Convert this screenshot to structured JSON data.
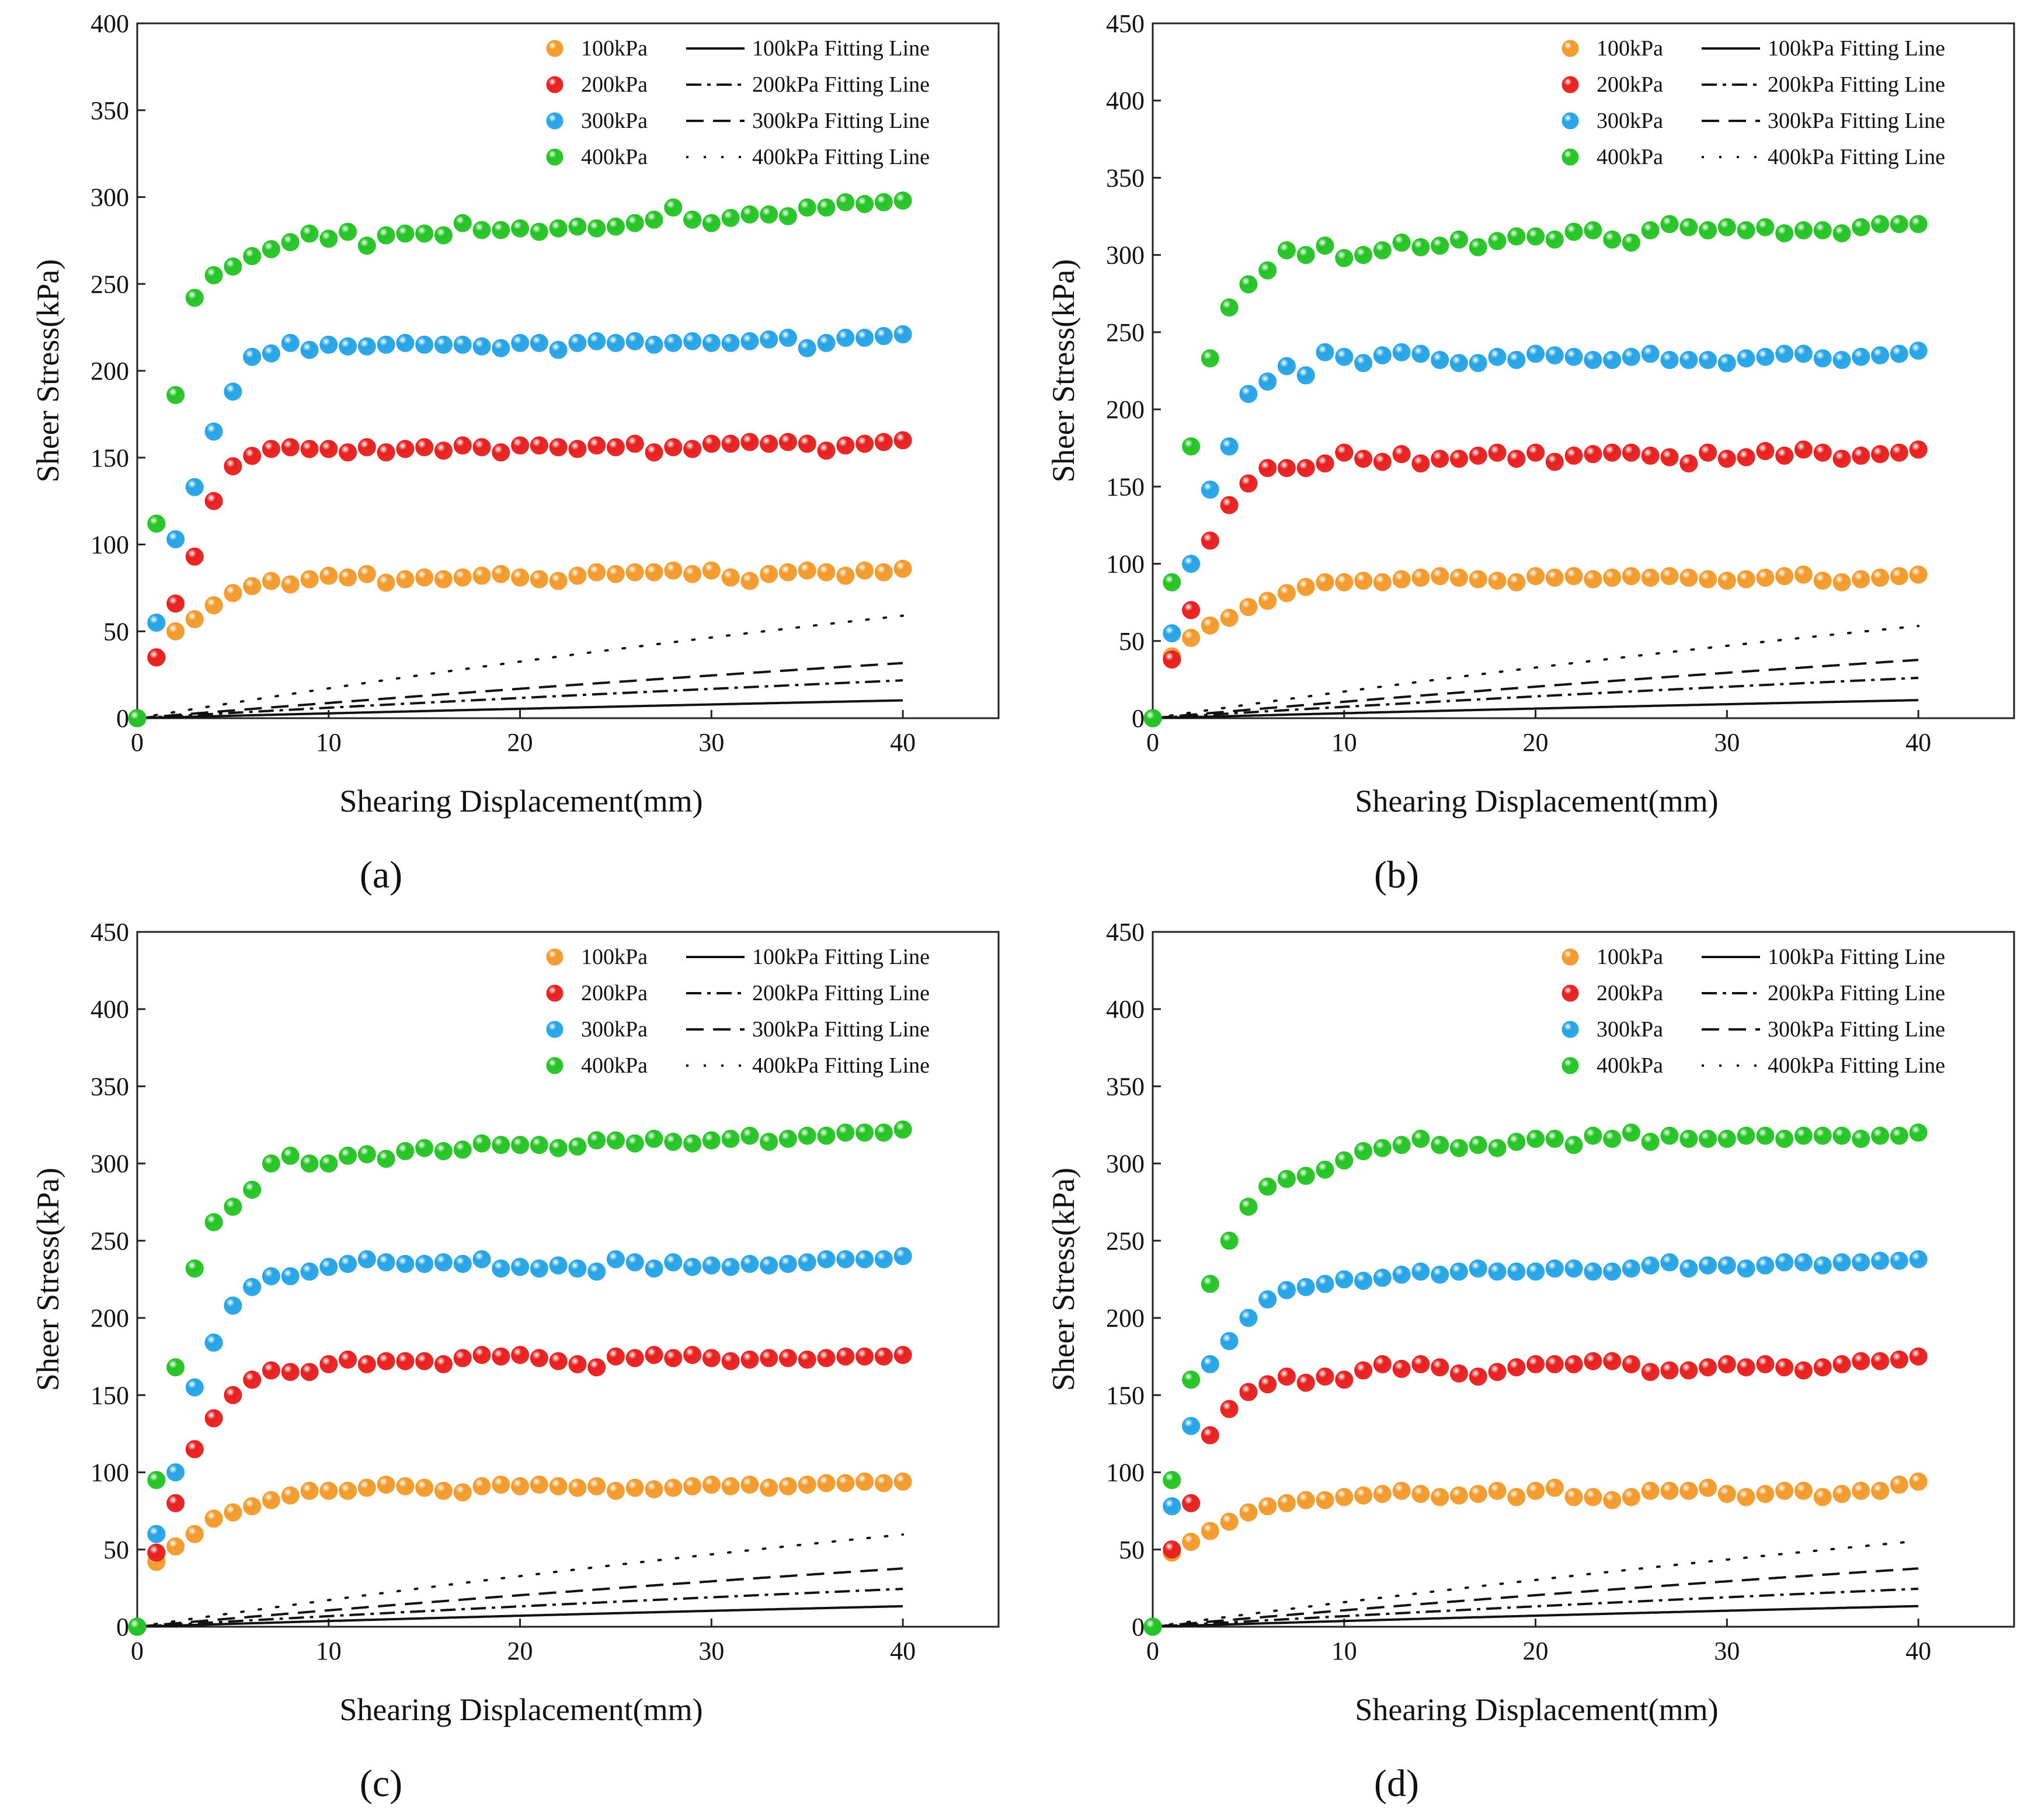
{
  "legend": {
    "markers": [
      "100kPa",
      "200kPa",
      "300kPa",
      "400kPa"
    ],
    "lines": [
      "100kPa Fitting Line",
      "200kPa Fitting Line",
      "300kPa Fitting Line",
      "400kPa Fitting Line"
    ]
  },
  "series_colors": [
    "#f39a2c",
    "#e8201f",
    "#26a4e6",
    "#25c425"
  ],
  "chart_data": [
    {
      "panel": "a",
      "caption": "(a)",
      "type": "scatter",
      "xlabel": "Shearing Displacement(mm)",
      "ylabel": "Sheer Stress(kPa)",
      "xlim": [
        0,
        45
      ],
      "ylim": [
        0,
        400
      ],
      "xticks": [
        0,
        10,
        20,
        30,
        40
      ],
      "yticks": [
        0,
        50,
        100,
        150,
        200,
        250,
        300,
        350,
        400
      ],
      "x": [
        0,
        1,
        2,
        3,
        4,
        5,
        6,
        7,
        8,
        9,
        10,
        11,
        12,
        13,
        14,
        15,
        16,
        17,
        18,
        19,
        20,
        21,
        22,
        23,
        24,
        25,
        26,
        27,
        28,
        29,
        30,
        31,
        32,
        33,
        34,
        35,
        36,
        37,
        38,
        39,
        40
      ],
      "series": [
        {
          "name": "100kPa",
          "values": [
            0,
            35,
            50,
            57,
            65,
            72,
            76,
            79,
            77,
            80,
            82,
            81,
            83,
            78,
            80,
            81,
            80,
            81,
            82,
            83,
            81,
            80,
            79,
            82,
            84,
            83,
            84,
            84,
            85,
            83,
            85,
            81,
            79,
            83,
            84,
            85,
            84,
            82,
            85,
            84,
            86
          ],
          "fit": {
            "a": 3.5,
            "b": 0.0099
          }
        },
        {
          "name": "200kPa",
          "values": [
            0,
            35,
            66,
            93,
            125,
            145,
            151,
            155,
            156,
            155,
            155,
            153,
            156,
            153,
            155,
            156,
            154,
            157,
            156,
            153,
            157,
            157,
            156,
            155,
            157,
            156,
            158,
            153,
            156,
            155,
            158,
            158,
            159,
            158,
            159,
            158,
            154,
            157,
            158,
            159,
            160
          ],
          "fit": {
            "a": 1.6,
            "b": 0.0059
          }
        },
        {
          "name": "300kPa",
          "values": [
            0,
            55,
            103,
            133,
            165,
            188,
            208,
            210,
            216,
            212,
            215,
            214,
            214,
            215,
            216,
            215,
            215,
            215,
            214,
            213,
            216,
            216,
            212,
            216,
            217,
            216,
            217,
            215,
            216,
            217,
            216,
            216,
            217,
            218,
            219,
            213,
            216,
            219,
            219,
            220,
            221
          ],
          "fit": {
            "a": 1.1,
            "b": 0.004
          }
        },
        {
          "name": "400kPa",
          "values": [
            0,
            112,
            186,
            242,
            255,
            260,
            266,
            270,
            274,
            279,
            276,
            280,
            272,
            278,
            279,
            279,
            278,
            285,
            281,
            281,
            282,
            280,
            282,
            283,
            282,
            283,
            285,
            287,
            294,
            287,
            285,
            288,
            290,
            290,
            289,
            294,
            294,
            297,
            296,
            297,
            298
          ],
          "fit": {
            "a": 0.55,
            "b": 0.0032
          }
        }
      ]
    },
    {
      "panel": "b",
      "caption": "(b)",
      "type": "scatter",
      "xlabel": "Shearing Displacement(mm)",
      "ylabel": "Sheer Stress(kPa)",
      "xlim": [
        0,
        45
      ],
      "ylim": [
        0,
        450
      ],
      "xticks": [
        0,
        10,
        20,
        30,
        40
      ],
      "yticks": [
        0,
        50,
        100,
        150,
        200,
        250,
        300,
        350,
        400,
        450
      ],
      "x": [
        0,
        1,
        2,
        3,
        4,
        5,
        6,
        7,
        8,
        9,
        10,
        11,
        12,
        13,
        14,
        15,
        16,
        17,
        18,
        19,
        20,
        21,
        22,
        23,
        24,
        25,
        26,
        27,
        28,
        29,
        30,
        31,
        32,
        33,
        34,
        35,
        36,
        37,
        38,
        39,
        40
      ],
      "series": [
        {
          "name": "100kPa",
          "values": [
            0,
            40,
            52,
            60,
            65,
            72,
            76,
            81,
            85,
            88,
            88,
            89,
            88,
            90,
            91,
            92,
            91,
            90,
            89,
            88,
            92,
            91,
            92,
            90,
            91,
            92,
            91,
            92,
            91,
            90,
            89,
            90,
            91,
            92,
            93,
            89,
            88,
            90,
            91,
            92,
            93
          ],
          "fit": {
            "a": 3.0,
            "b": 0.0105
          }
        },
        {
          "name": "200kPa",
          "values": [
            0,
            38,
            70,
            115,
            138,
            152,
            162,
            162,
            162,
            165,
            172,
            168,
            166,
            171,
            165,
            168,
            168,
            170,
            172,
            168,
            172,
            166,
            170,
            171,
            172,
            172,
            170,
            169,
            165,
            172,
            168,
            169,
            173,
            170,
            174,
            172,
            168,
            170,
            171,
            172,
            174
          ],
          "fit": {
            "a": 1.3,
            "b": 0.0058
          }
        },
        {
          "name": "300kPa",
          "values": [
            0,
            55,
            100,
            148,
            176,
            210,
            218,
            228,
            222,
            237,
            234,
            230,
            235,
            237,
            236,
            232,
            230,
            230,
            234,
            232,
            236,
            235,
            234,
            232,
            232,
            234,
            236,
            232,
            232,
            232,
            230,
            233,
            234,
            236,
            236,
            233,
            232,
            234,
            235,
            236,
            238
          ],
          "fit": {
            "a": 0.9,
            "b": 0.004
          }
        },
        {
          "name": "400kPa",
          "values": [
            0,
            88,
            176,
            233,
            266,
            281,
            290,
            303,
            300,
            306,
            298,
            300,
            303,
            308,
            305,
            306,
            310,
            305,
            309,
            312,
            312,
            310,
            315,
            316,
            310,
            308,
            316,
            320,
            318,
            316,
            318,
            316,
            318,
            314,
            316,
            316,
            314,
            318,
            320,
            320,
            320
          ],
          "fit": {
            "a": 0.55,
            "b": 0.003
          }
        }
      ]
    },
    {
      "panel": "c",
      "caption": "(c)",
      "type": "scatter",
      "xlabel": "Shearing Displacement(mm)",
      "ylabel": "Sheer Stress(kPa)",
      "xlim": [
        0,
        45
      ],
      "ylim": [
        0,
        450
      ],
      "xticks": [
        0,
        10,
        20,
        30,
        40
      ],
      "yticks": [
        0,
        50,
        100,
        150,
        200,
        250,
        300,
        350,
        400,
        450
      ],
      "x": [
        0,
        1,
        2,
        3,
        4,
        5,
        6,
        7,
        8,
        9,
        10,
        11,
        12,
        13,
        14,
        15,
        16,
        17,
        18,
        19,
        20,
        21,
        22,
        23,
        24,
        25,
        26,
        27,
        28,
        29,
        30,
        31,
        32,
        33,
        34,
        35,
        36,
        37,
        38,
        39,
        40
      ],
      "series": [
        {
          "name": "100kPa",
          "values": [
            0,
            42,
            52,
            60,
            70,
            74,
            78,
            82,
            85,
            88,
            88,
            88,
            90,
            92,
            91,
            90,
            88,
            87,
            91,
            92,
            91,
            92,
            91,
            90,
            91,
            88,
            90,
            89,
            90,
            91,
            92,
            91,
            92,
            90,
            91,
            92,
            93,
            93,
            94,
            93,
            94
          ],
          "fit": {
            "a": 2.6,
            "b": 0.0103
          }
        },
        {
          "name": "200kPa",
          "values": [
            0,
            48,
            80,
            115,
            135,
            150,
            160,
            166,
            165,
            165,
            170,
            173,
            170,
            172,
            172,
            172,
            170,
            174,
            176,
            175,
            176,
            174,
            172,
            170,
            168,
            175,
            174,
            176,
            174,
            176,
            174,
            172,
            173,
            174,
            174,
            173,
            174,
            175,
            175,
            175,
            176
          ],
          "fit": {
            "a": 1.4,
            "b": 0.0058
          }
        },
        {
          "name": "300kPa",
          "values": [
            0,
            60,
            100,
            155,
            184,
            208,
            220,
            227,
            227,
            230,
            233,
            235,
            238,
            236,
            235,
            235,
            236,
            235,
            238,
            232,
            233,
            232,
            234,
            232,
            230,
            238,
            236,
            232,
            236,
            233,
            234,
            233,
            235,
            234,
            235,
            236,
            238,
            238,
            238,
            238,
            240
          ],
          "fit": {
            "a": 0.9,
            "b": 0.004
          }
        },
        {
          "name": "400kPa",
          "values": [
            0,
            95,
            168,
            232,
            262,
            272,
            283,
            300,
            305,
            300,
            300,
            305,
            306,
            303,
            308,
            310,
            308,
            309,
            313,
            312,
            312,
            312,
            310,
            311,
            315,
            315,
            313,
            316,
            314,
            313,
            315,
            316,
            318,
            314,
            316,
            318,
            318,
            320,
            320,
            320,
            322
          ],
          "fit": {
            "a": 0.55,
            "b": 0.003
          }
        }
      ]
    },
    {
      "panel": "d",
      "caption": "(d)",
      "type": "scatter",
      "xlabel": "Shearing Displacement(mm)",
      "ylabel": "Sheer Stress(kPa)",
      "xlim": [
        0,
        45
      ],
      "ylim": [
        0,
        450
      ],
      "xticks": [
        0,
        10,
        20,
        30,
        40
      ],
      "yticks": [
        0,
        50,
        100,
        150,
        200,
        250,
        300,
        350,
        400,
        450
      ],
      "x": [
        0,
        1,
        2,
        3,
        4,
        5,
        6,
        7,
        8,
        9,
        10,
        11,
        12,
        13,
        14,
        15,
        16,
        17,
        18,
        19,
        20,
        21,
        22,
        23,
        24,
        25,
        26,
        27,
        28,
        29,
        30,
        31,
        32,
        33,
        34,
        35,
        36,
        37,
        38,
        39,
        40
      ],
      "series": [
        {
          "name": "100kPa",
          "values": [
            0,
            48,
            55,
            62,
            68,
            74,
            78,
            80,
            82,
            82,
            84,
            85,
            86,
            88,
            86,
            84,
            85,
            86,
            88,
            84,
            88,
            90,
            84,
            84,
            82,
            84,
            88,
            88,
            88,
            90,
            86,
            84,
            86,
            88,
            88,
            84,
            86,
            88,
            88,
            92,
            94
          ],
          "fit": {
            "a": 2.6,
            "b": 0.0098
          }
        },
        {
          "name": "200kPa",
          "values": [
            0,
            50,
            80,
            124,
            141,
            152,
            157,
            162,
            158,
            162,
            160,
            166,
            170,
            167,
            170,
            168,
            164,
            162,
            165,
            168,
            170,
            170,
            170,
            172,
            172,
            170,
            165,
            166,
            166,
            168,
            170,
            168,
            170,
            168,
            166,
            168,
            170,
            172,
            172,
            173,
            175
          ],
          "fit": {
            "a": 1.4,
            "b": 0.0057
          }
        },
        {
          "name": "300kPa",
          "values": [
            0,
            78,
            130,
            170,
            185,
            200,
            212,
            218,
            220,
            222,
            225,
            224,
            226,
            228,
            230,
            228,
            230,
            232,
            230,
            230,
            230,
            232,
            232,
            230,
            230,
            232,
            234,
            236,
            232,
            234,
            234,
            232,
            234,
            236,
            236,
            234,
            236,
            236,
            237,
            237,
            238
          ],
          "fit": {
            "a": 0.9,
            "b": 0.004
          }
        },
        {
          "name": "400kPa",
          "values": [
            0,
            95,
            160,
            222,
            250,
            272,
            285,
            290,
            292,
            296,
            302,
            308,
            310,
            312,
            316,
            312,
            310,
            312,
            310,
            314,
            316,
            316,
            312,
            318,
            316,
            320,
            314,
            318,
            316,
            316,
            316,
            318,
            318,
            316,
            318,
            318,
            318,
            316,
            318,
            318,
            320
          ],
          "fit": {
            "a": 0.6,
            "b": 0.003
          }
        }
      ]
    }
  ]
}
